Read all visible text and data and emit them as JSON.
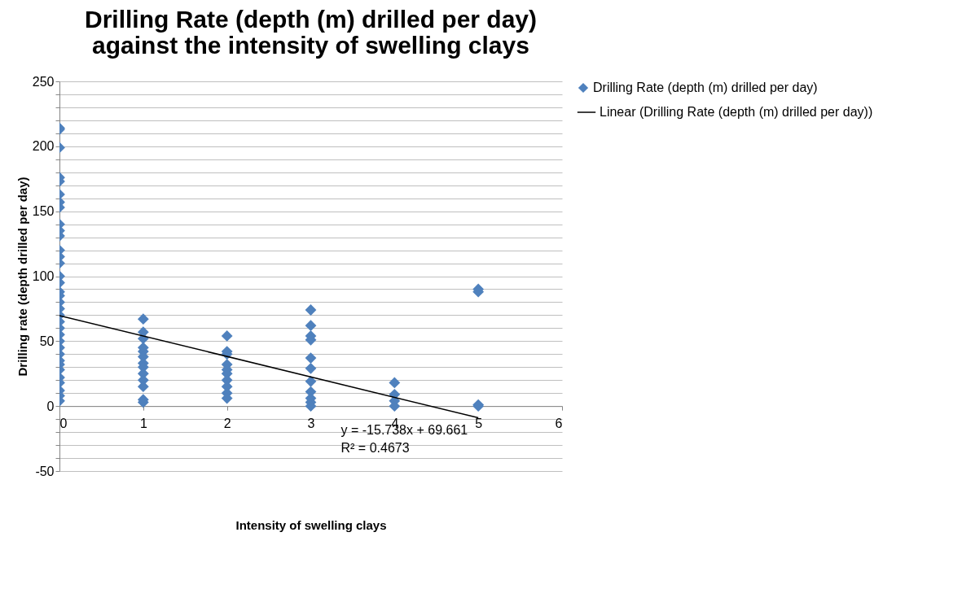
{
  "chart_data": {
    "type": "scatter",
    "title": "Drilling Rate (depth (m) drilled per day)\nagainst the intensity of swelling clays",
    "xlabel": "Intensity of swelling clays",
    "ylabel": "Drilling rate (depth drilled per day)",
    "xlim": [
      0,
      6
    ],
    "xticks": [
      0,
      1,
      2,
      3,
      4,
      5,
      6
    ],
    "ylim": [
      -50,
      250
    ],
    "yticks": [
      -50,
      {
        "value": -40,
        "label": null
      },
      {
        "value": -30,
        "label": null
      },
      {
        "value": -20,
        "label": null
      },
      {
        "value": -10,
        "label": null
      },
      0,
      {
        "value": 10,
        "label": null
      },
      {
        "value": 20,
        "label": null
      },
      {
        "value": 30,
        "label": null
      },
      {
        "value": 40,
        "label": null
      },
      50,
      {
        "value": 60,
        "label": null
      },
      {
        "value": 70,
        "label": null
      },
      {
        "value": 80,
        "label": null
      },
      {
        "value": 90,
        "label": null
      },
      100,
      {
        "value": 110,
        "label": null
      },
      {
        "value": 120,
        "label": null
      },
      {
        "value": 130,
        "label": null
      },
      {
        "value": 140,
        "label": null
      },
      150,
      {
        "value": 160,
        "label": null
      },
      {
        "value": 170,
        "label": null
      },
      {
        "value": 180,
        "label": null
      },
      {
        "value": 190,
        "label": null
      },
      200,
      {
        "value": 210,
        "label": null
      },
      {
        "value": 220,
        "label": null
      },
      {
        "value": 230,
        "label": null
      },
      {
        "value": 240,
        "label": null
      },
      250
    ],
    "grid": "y",
    "legend": "right",
    "series": [
      {
        "name": "Drilling Rate (depth (m) drilled per day)",
        "marker": "diamond",
        "color": "#4f81bd",
        "x": [
          0,
          0,
          0,
          0,
          0,
          0,
          0,
          0,
          0,
          0,
          0,
          0,
          0,
          0,
          0,
          0,
          0,
          0,
          0,
          0,
          0,
          0,
          0,
          0,
          0,
          0,
          0,
          0,
          0,
          0,
          0,
          0,
          0,
          0,
          0,
          1,
          1,
          1,
          1,
          1,
          1,
          1,
          1,
          1,
          1,
          1,
          1,
          1,
          2,
          2,
          2,
          2,
          2,
          2,
          2,
          2,
          2,
          2,
          3,
          3,
          3,
          3,
          3,
          3,
          3,
          3,
          3,
          3,
          3,
          4,
          4,
          4,
          4,
          5,
          5,
          5,
          5
        ],
        "values": [
          214,
          213,
          199,
          176,
          173,
          163,
          157,
          153,
          140,
          135,
          131,
          120,
          115,
          110,
          100,
          95,
          88,
          85,
          80,
          75,
          70,
          65,
          60,
          55,
          50,
          45,
          40,
          35,
          32,
          28,
          22,
          18,
          12,
          8,
          4,
          67,
          57,
          52,
          45,
          42,
          38,
          33,
          30,
          25,
          20,
          15,
          5,
          3,
          54,
          42,
          40,
          32,
          28,
          25,
          20,
          15,
          10,
          6,
          74,
          62,
          54,
          51,
          37,
          29,
          19,
          11,
          6,
          3,
          0,
          18,
          9,
          4,
          0,
          90,
          88,
          1,
          0
        ]
      },
      {
        "name": "Linear (Drilling Rate (depth (m) drilled per day))",
        "type": "line",
        "color": "#000000",
        "x": [
          0,
          5
        ],
        "values": [
          69.7,
          -9.0
        ]
      }
    ],
    "annotations": [
      "y = -15.738x + 69.661",
      "R² = 0.4673"
    ]
  }
}
